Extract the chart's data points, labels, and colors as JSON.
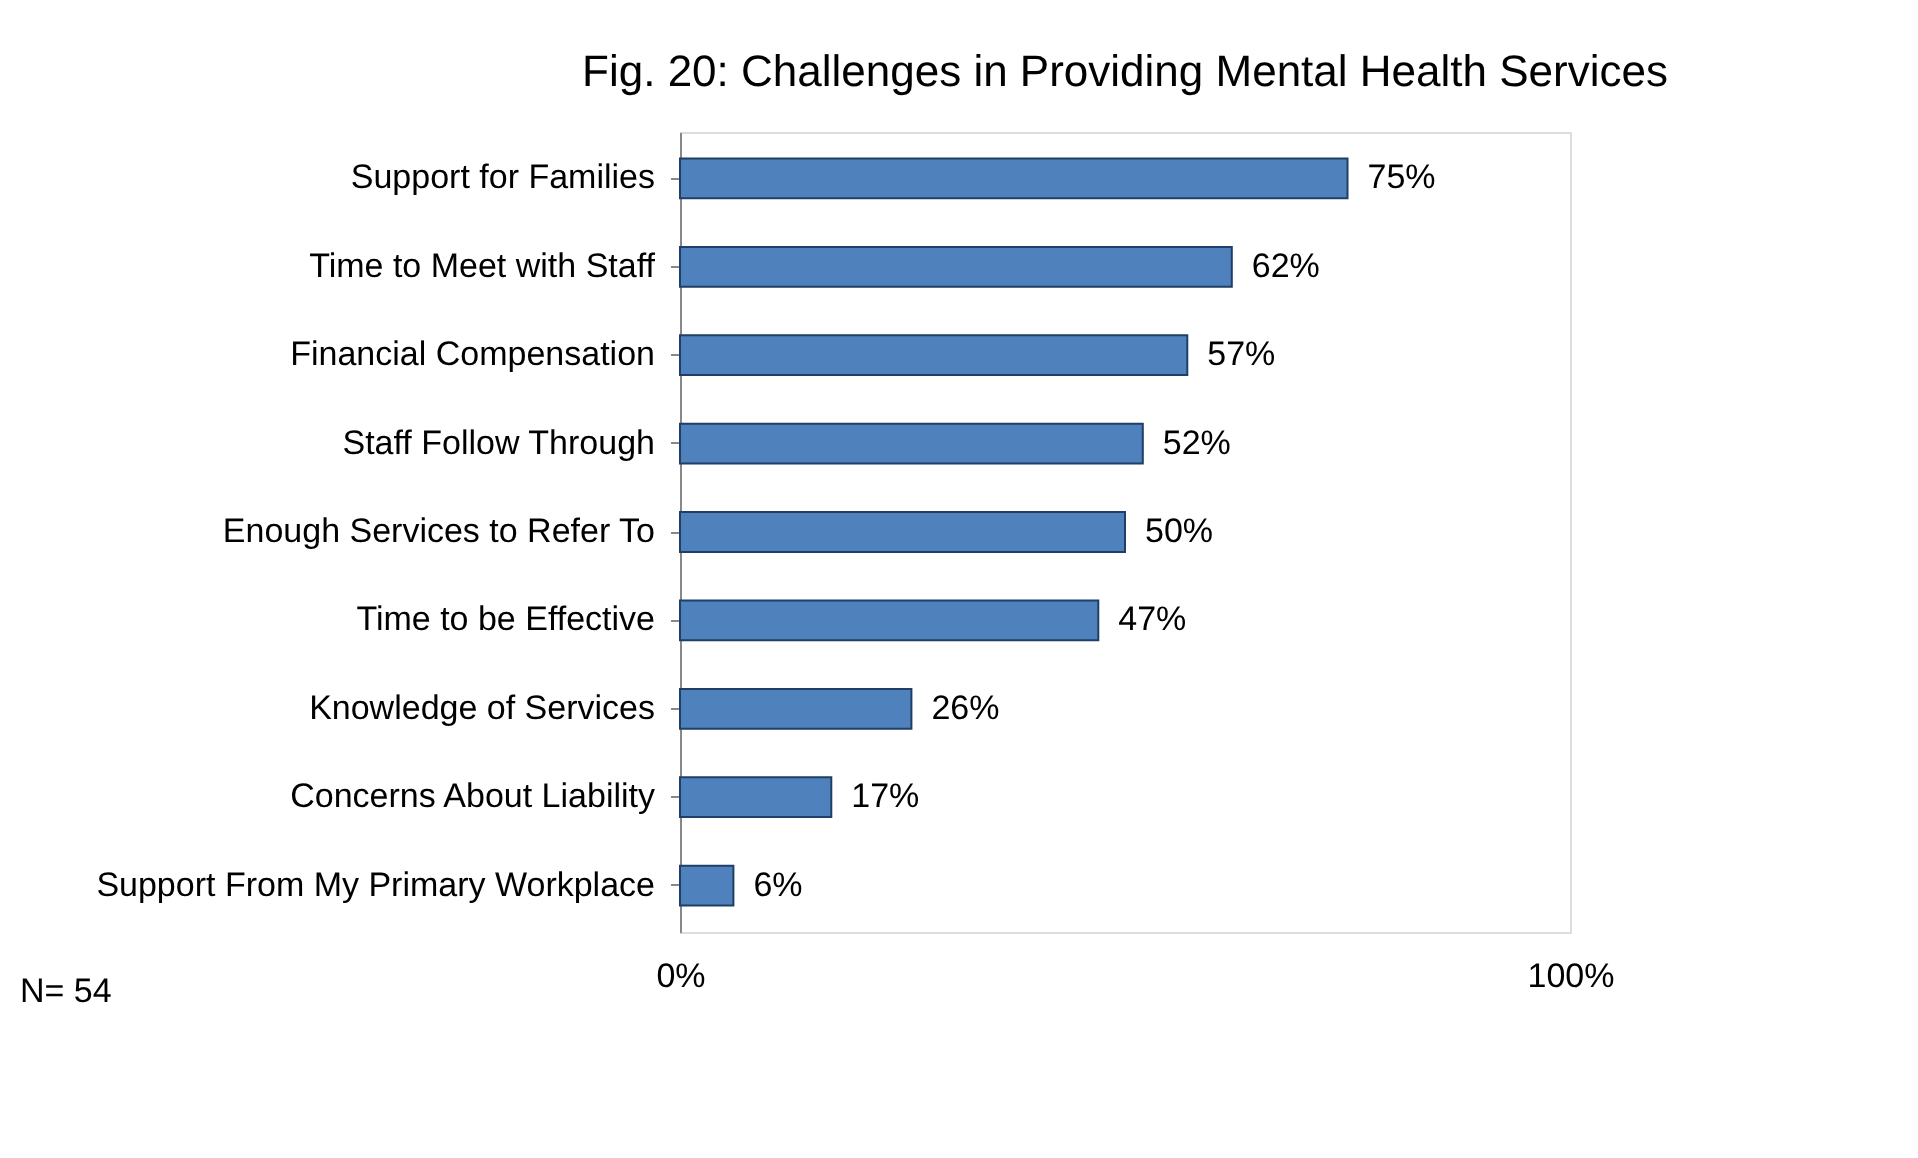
{
  "chart_data": {
    "type": "bar",
    "title": "Fig. 20: Challenges in Providing Mental Health Services",
    "orientation": "horizontal",
    "categories": [
      "Support for Families",
      "Time to Meet with Staff",
      "Financial Compensation",
      "Staff Follow Through",
      "Enough Services to Refer To",
      "Time to be Effective",
      "Knowledge of Services",
      "Concerns About Liability",
      "Support From My Primary Workplace"
    ],
    "values": [
      75,
      62,
      57,
      52,
      50,
      47,
      26,
      17,
      6
    ],
    "value_labels": [
      "75%",
      "62%",
      "57%",
      "52%",
      "50%",
      "47%",
      "26%",
      "17%",
      "6%"
    ],
    "color": "#4f81bd",
    "xlim": [
      0,
      100
    ],
    "xticks": [
      {
        "value": 0,
        "label": "0%"
      },
      {
        "value": 100,
        "label": "100%"
      }
    ],
    "grid": false,
    "annotations": [
      "N= 54"
    ]
  }
}
